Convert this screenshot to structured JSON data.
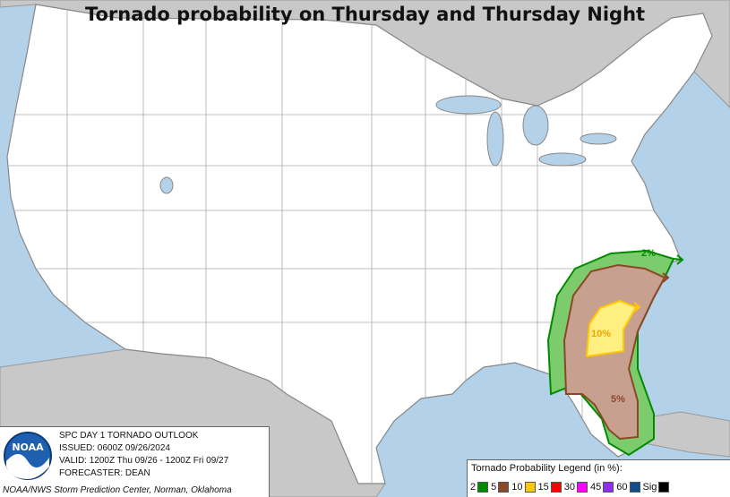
{
  "title": "Tornado probability on Thursday and Thursday Night",
  "outlook": {
    "product": "SPC DAY 1 TORNADO OUTLOOK",
    "issued": "ISSUED: 0600Z 09/26/2024",
    "valid": "VALID: 1200Z Thu 09/26 - 1200Z Fri 09/27",
    "forecaster": "FORECASTER: DEAN",
    "credit": "NOAA/NWS Storm Prediction Center, Norman, Oklahoma",
    "logo_text": "NOAA"
  },
  "legend": {
    "title": "Tornado Probability Legend (in %):",
    "items": [
      {
        "label": "2",
        "color": "#008b00"
      },
      {
        "label": "5",
        "color": "#8b4726"
      },
      {
        "label": "10",
        "color": "#ffc800"
      },
      {
        "label": "15",
        "color": "#ff0000"
      },
      {
        "label": "30",
        "color": "#ff00ff"
      },
      {
        "label": "45",
        "color": "#912cee"
      },
      {
        "label": "60",
        "color": "#104e8b"
      },
      {
        "label": "Sig",
        "color": "#000000"
      }
    ]
  },
  "risk_labels": {
    "two": "2%",
    "five": "5%",
    "ten": "10%"
  },
  "colors": {
    "water": "#b3d1e8",
    "foreign_land": "#c8c8c8",
    "us_land": "#ffffff",
    "two_fill": "#7ccc6e",
    "two_line": "#008b00",
    "five_fill": "#c8a090",
    "five_line": "#8b4726",
    "ten_fill": "#ffef80",
    "ten_line": "#ffc800"
  }
}
